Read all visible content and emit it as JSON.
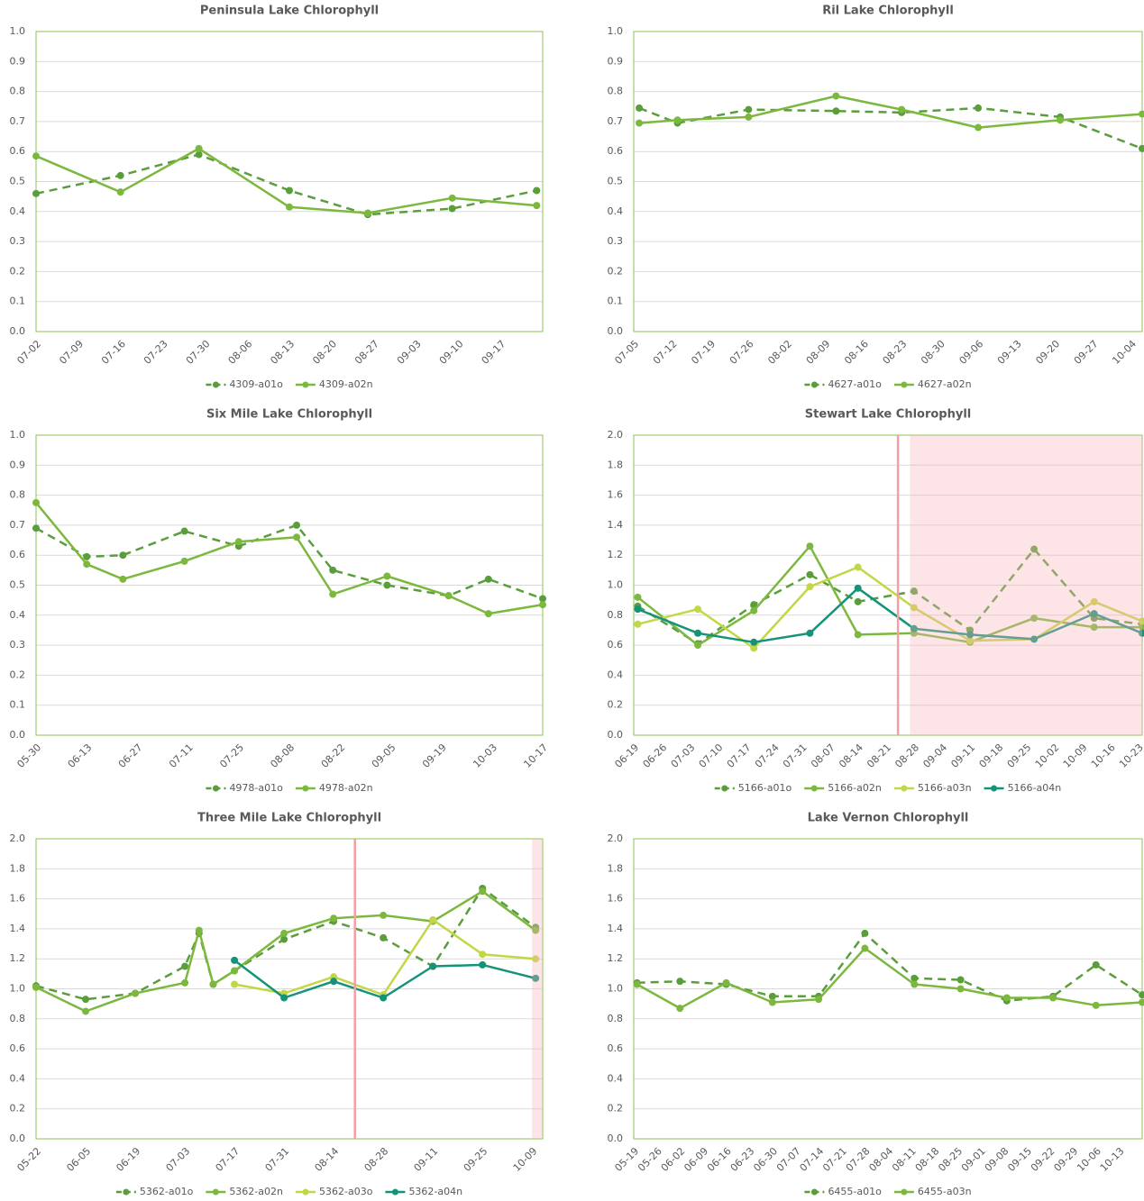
{
  "chart_data": [
    {
      "type": "line",
      "title": "Peninsula Lake Chlorophyll",
      "x": [
        "07-02",
        "07-16",
        "07-29",
        "08-13",
        "08-26",
        "09-09",
        "09-23"
      ],
      "xlim": [
        "07-02",
        "09-24"
      ],
      "xticks": [
        "07-02",
        "07-09",
        "07-16",
        "07-23",
        "07-30",
        "08-06",
        "08-13",
        "08-20",
        "08-27",
        "09-03",
        "09-10",
        "09-17"
      ],
      "ylim": [
        0,
        1
      ],
      "yticks": [
        {
          "value": 0,
          "label": "0.0"
        },
        0.1,
        0.2,
        0.3,
        0.4,
        0.5,
        0.6,
        0.7,
        0.8,
        0.9,
        {
          "value": 1,
          "label": "1.0"
        }
      ],
      "grid": true,
      "legend": "bottom",
      "series": [
        {
          "name": "4309-a01o",
          "color": "#5a9e3c",
          "style": "dashed",
          "values": [
            0.46,
            0.52,
            0.59,
            0.47,
            0.39,
            0.41,
            0.47
          ]
        },
        {
          "name": "4309-a02n",
          "color": "#7cb83e",
          "style": "solid",
          "values": [
            0.585,
            0.465,
            0.61,
            0.415,
            0.395,
            0.445,
            0.42
          ]
        }
      ]
    },
    {
      "type": "line",
      "title": "Ril Lake Chlorophyll",
      "x": [
        "07-06",
        "07-13",
        "07-26",
        "08-11",
        "08-23",
        "09-06",
        "09-21",
        "10-06"
      ],
      "xlim": [
        "07-05",
        "10-06"
      ],
      "xticks": [
        "07-05",
        "07-12",
        "07-19",
        "07-26",
        "08-02",
        "08-09",
        "08-16",
        "08-23",
        "08-30",
        "09-06",
        "09-13",
        "09-20",
        "09-27",
        "10-04"
      ],
      "ylim": [
        0,
        1
      ],
      "yticks": [
        {
          "value": 0,
          "label": "0.0"
        },
        0.1,
        0.2,
        0.3,
        0.4,
        0.5,
        0.6,
        0.7,
        0.8,
        0.9,
        {
          "value": 1,
          "label": "1.0"
        }
      ],
      "grid": true,
      "legend": "bottom",
      "series": [
        {
          "name": "4627-a01o",
          "color": "#5a9e3c",
          "style": "dashed",
          "values": [
            0.745,
            0.695,
            0.74,
            0.735,
            0.73,
            0.745,
            0.715,
            0.61
          ]
        },
        {
          "name": "4627-a02n",
          "color": "#7cb83e",
          "style": "solid",
          "values": [
            0.695,
            0.705,
            0.715,
            0.785,
            0.74,
            0.68,
            0.705,
            0.725
          ]
        }
      ]
    },
    {
      "type": "line",
      "title": "Six Mile Lake Chlorophyll",
      "x": [
        "05-30",
        "06-13",
        "06-23",
        "07-10",
        "07-25",
        "08-10",
        "08-20",
        "09-04",
        "09-21",
        "10-02",
        "10-17"
      ],
      "xlim": [
        "05-30",
        "10-17"
      ],
      "xticks": [
        "05-30",
        "06-13",
        "06-27",
        "07-11",
        "07-25",
        "08-08",
        "08-22",
        "09-05",
        "09-19",
        "10-03",
        "10-17"
      ],
      "ylim": [
        0,
        1
      ],
      "yticks": [
        {
          "value": 0,
          "label": "0.0"
        },
        0.1,
        0.2,
        0.3,
        0.4,
        0.5,
        0.6,
        0.7,
        0.8,
        0.9,
        {
          "value": 1,
          "label": "1.0"
        }
      ],
      "grid": true,
      "legend": "bottom",
      "series": [
        {
          "name": "4978-a01o",
          "color": "#5a9e3c",
          "style": "dashed",
          "values": [
            0.69,
            0.595,
            0.6,
            0.68,
            0.63,
            0.7,
            0.55,
            0.5,
            0.465,
            0.52,
            0.455
          ]
        },
        {
          "name": "4978-a02n",
          "color": "#7cb83e",
          "style": "solid",
          "values": [
            0.775,
            0.57,
            0.52,
            0.58,
            0.645,
            0.66,
            0.47,
            0.53,
            0.465,
            0.405,
            0.435
          ]
        }
      ]
    },
    {
      "type": "line",
      "title": "Stewart Lake Chlorophyll",
      "x": [
        "06-20",
        "07-05",
        "07-19",
        "08-02",
        "08-14",
        "08-28",
        "09-11",
        "09-27",
        "10-12",
        "10-24"
      ],
      "xlim": [
        "06-19",
        "10-24"
      ],
      "xticks": [
        "06-19",
        "06-26",
        "07-03",
        "07-10",
        "07-17",
        "07-24",
        "07-31",
        "08-07",
        "08-14",
        "08-21",
        "08-28",
        "09-04",
        "09-11",
        "09-18",
        "09-25",
        "10-02",
        "10-09",
        "10-16",
        "10-23"
      ],
      "ylim": [
        0,
        2
      ],
      "yticks": [
        {
          "value": 0,
          "label": "0.0"
        },
        0.2,
        0.4,
        0.6,
        0.8,
        {
          "value": 1,
          "label": "1.0"
        },
        1.2,
        1.4,
        1.6,
        1.8,
        {
          "value": 2,
          "label": "2.0"
        }
      ],
      "grid": true,
      "legend": "bottom",
      "vline": "08-24",
      "shade": [
        "08-27",
        "10-24"
      ],
      "series": [
        {
          "name": "5166-a01o",
          "color": "#5a9e3c",
          "style": "dashed",
          "values": [
            0.86,
            0.61,
            0.87,
            1.07,
            0.89,
            0.96,
            0.7,
            1.24,
            0.78,
            0.74
          ]
        },
        {
          "name": "5166-a02n",
          "color": "#7cb83e",
          "style": "solid",
          "values": [
            0.92,
            0.6,
            0.83,
            1.26,
            0.67,
            0.68,
            0.62,
            0.78,
            0.72,
            0.72
          ]
        },
        {
          "name": "5166-a03n",
          "color": "#c3d645",
          "style": "solid",
          "values": [
            0.74,
            0.84,
            0.58,
            0.99,
            1.12,
            0.85,
            0.63,
            0.64,
            0.89,
            0.76
          ]
        },
        {
          "name": "5166-a04n",
          "color": "#14937a",
          "style": "solid",
          "values": [
            0.84,
            0.68,
            0.62,
            0.68,
            0.98,
            0.71,
            0.67,
            0.64,
            0.81,
            0.68
          ]
        }
      ]
    },
    {
      "type": "line",
      "title": "Three Mile Lake Chlorophyll",
      "x": [
        "05-22",
        "06-05",
        "06-19",
        "07-03",
        "07-07",
        "07-11",
        "07-17",
        "07-31",
        "08-14",
        "08-28",
        "09-11",
        "09-25",
        "10-10"
      ],
      "xlim": [
        "05-22",
        "10-12"
      ],
      "xticks": [
        "05-22",
        "06-05",
        "06-19",
        "07-03",
        "07-17",
        "07-31",
        "08-14",
        "08-28",
        "09-11",
        "09-25",
        "10-09"
      ],
      "ylim": [
        0,
        2
      ],
      "yticks": [
        {
          "value": 0,
          "label": "0.0"
        },
        0.2,
        0.4,
        0.6,
        0.8,
        {
          "value": 1,
          "label": "1.0"
        },
        1.2,
        1.4,
        1.6,
        1.8,
        {
          "value": 2,
          "label": "2.0"
        }
      ],
      "grid": true,
      "legend": "bottom",
      "vline": "08-20",
      "shade": [
        "10-09",
        "10-12"
      ],
      "series": [
        {
          "name": "5362-a01o",
          "color": "#5a9e3c",
          "style": "dashed",
          "values": [
            1.02,
            0.93,
            0.97,
            1.15,
            1.37,
            1.03,
            1.12,
            1.33,
            1.45,
            1.34,
            1.15,
            1.67,
            1.41
          ]
        },
        {
          "name": "5362-a02n",
          "color": "#7cb83e",
          "style": "solid",
          "values": [
            1.01,
            0.85,
            0.97,
            1.04,
            1.39,
            1.03,
            1.12,
            1.37,
            1.47,
            1.49,
            1.45,
            1.65,
            1.39
          ]
        },
        {
          "name": "5362-a03o",
          "color": "#c3d645",
          "style": "solid",
          "values": [
            null,
            null,
            null,
            null,
            null,
            null,
            1.03,
            0.97,
            1.08,
            0.96,
            1.46,
            1.23,
            1.2
          ]
        },
        {
          "name": "5362-a04n",
          "color": "#14937a",
          "style": "solid",
          "values": [
            null,
            null,
            null,
            null,
            null,
            null,
            1.19,
            0.94,
            1.05,
            0.94,
            1.15,
            1.16,
            1.07
          ]
        }
      ]
    },
    {
      "type": "line",
      "title": "Lake Vernon Chlorophyll",
      "x": [
        "05-20",
        "06-02",
        "06-16",
        "06-30",
        "07-14",
        "07-28",
        "08-12",
        "08-26",
        "09-09",
        "09-23",
        "10-06",
        "10-20"
      ],
      "xlim": [
        "05-19",
        "10-20"
      ],
      "xticks": [
        "05-19",
        "05-26",
        "06-02",
        "06-09",
        "06-16",
        "06-23",
        "06-30",
        "07-07",
        "07-14",
        "07-21",
        "07-28",
        "08-04",
        "08-11",
        "08-18",
        "08-25",
        "09-01",
        "09-08",
        "09-15",
        "09-22",
        "09-29",
        "10-06",
        "10-13"
      ],
      "ylim": [
        0,
        2
      ],
      "yticks": [
        {
          "value": 0,
          "label": "0.0"
        },
        0.2,
        0.4,
        0.6,
        0.8,
        {
          "value": 1,
          "label": "1.0"
        },
        1.2,
        1.4,
        1.6,
        1.8,
        {
          "value": 2,
          "label": "2.0"
        }
      ],
      "grid": true,
      "legend": "bottom",
      "series": [
        {
          "name": "6455-a01o",
          "color": "#5a9e3c",
          "style": "dashed",
          "values": [
            1.04,
            1.05,
            1.03,
            0.95,
            0.95,
            1.37,
            1.07,
            1.06,
            0.92,
            0.95,
            1.16,
            0.96
          ]
        },
        {
          "name": "6455-a03n",
          "color": "#7cb83e",
          "style": "solid",
          "values": [
            1.03,
            0.87,
            1.04,
            0.91,
            0.93,
            1.27,
            1.03,
            1.0,
            0.94,
            0.94,
            0.89,
            0.91
          ]
        }
      ]
    }
  ]
}
